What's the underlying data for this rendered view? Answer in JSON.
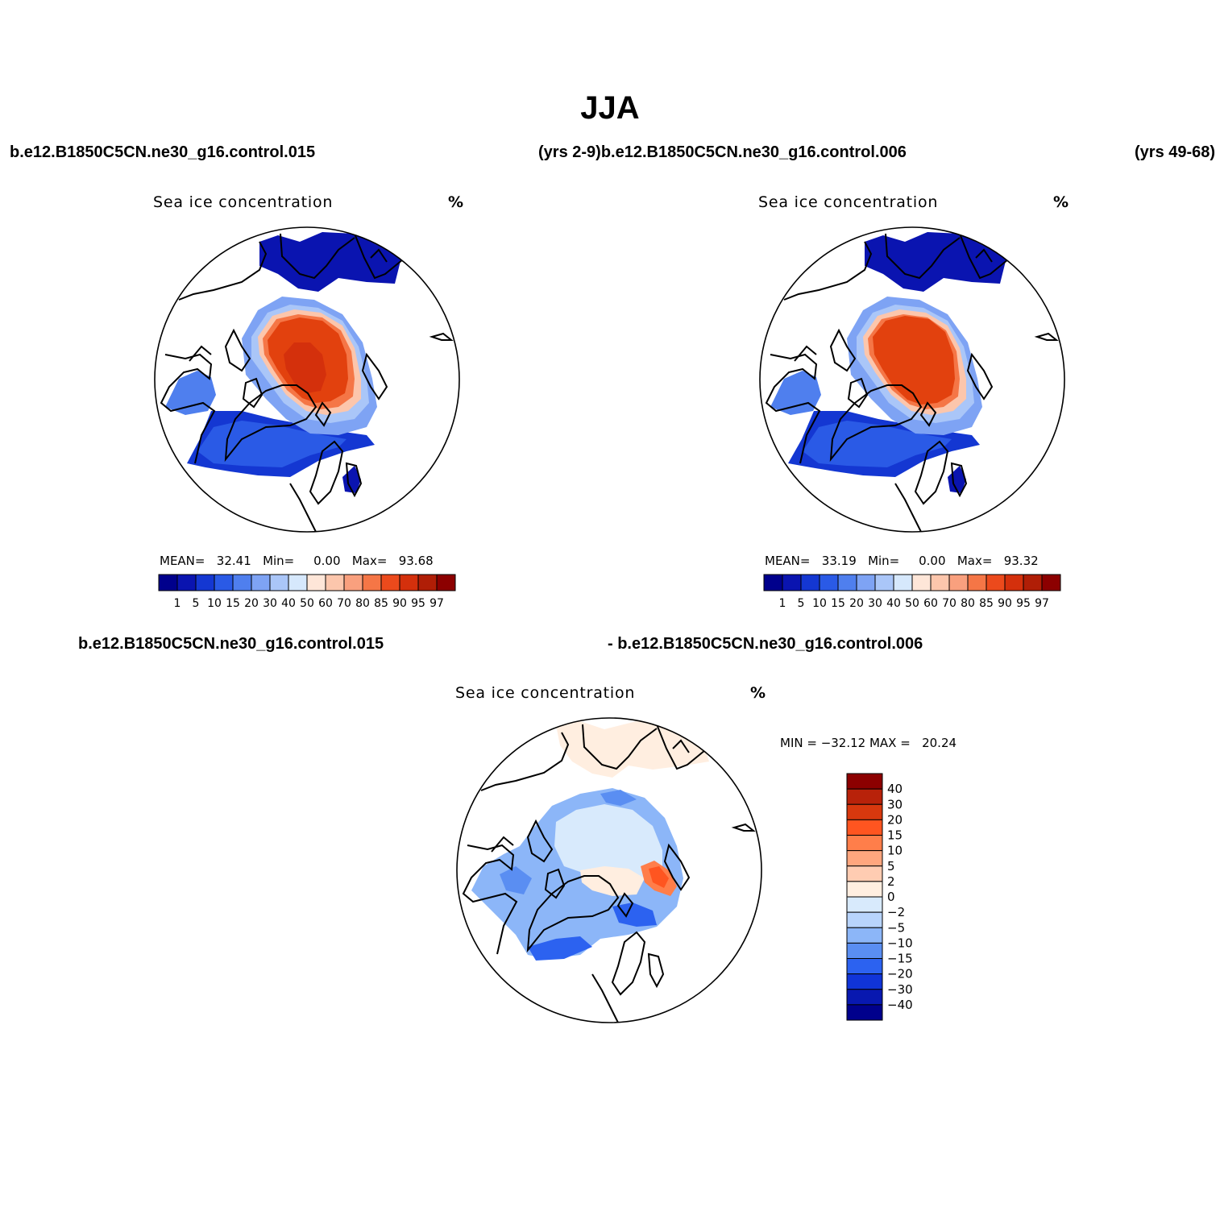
{
  "figure": {
    "title": "JJA",
    "header_left": "b.e12.B1850C5CN.ne30_g16.control.015",
    "header_middle": "(yrs 2-9)b.e12.B1850C5CN.ne30_g16.control.006",
    "header_right": "(yrs 49-68)",
    "diff_label_left": "b.e12.B1850C5CN.ne30_g16.control.015",
    "diff_label_right": "- b.e12.B1850C5CN.ne30_g16.control.006"
  },
  "panels": [
    {
      "title": "Sea ice concentration",
      "unit": "%",
      "stats": {
        "mean_label": "MEAN=",
        "mean": "32.41",
        "min_label": "Min=",
        "min": "0.00",
        "max_label": "Max=",
        "max": "93.68"
      },
      "colorbar": {
        "colors": [
          "#00008c",
          "#0a14b0",
          "#1437d2",
          "#2a5ae6",
          "#4f7fee",
          "#7ea3f4",
          "#aac6f8",
          "#d6e8fc",
          "#fee6d8",
          "#fcc6ac",
          "#f9a07e",
          "#f57646",
          "#ec4a1c",
          "#d4300c",
          "#b01e06",
          "#8c0000"
        ],
        "ticks": [
          "1",
          "5",
          "10",
          "15",
          "20",
          "30",
          "40",
          "50",
          "60",
          "70",
          "80",
          "85",
          "90",
          "95",
          "97"
        ]
      }
    },
    {
      "title": "Sea ice concentration",
      "unit": "%",
      "stats": {
        "mean_label": "MEAN=",
        "mean": "33.19",
        "min_label": "Min=",
        "min": "0.00",
        "max_label": "Max=",
        "max": "93.32"
      },
      "colorbar": {
        "colors": [
          "#00008c",
          "#0a14b0",
          "#1437d2",
          "#2a5ae6",
          "#4f7fee",
          "#7ea3f4",
          "#aac6f8",
          "#d6e8fc",
          "#fee6d8",
          "#fcc6ac",
          "#f9a07e",
          "#f57646",
          "#ec4a1c",
          "#d4300c",
          "#b01e06",
          "#8c0000"
        ],
        "ticks": [
          "1",
          "5",
          "10",
          "15",
          "20",
          "30",
          "40",
          "50",
          "60",
          "70",
          "80",
          "85",
          "90",
          "95",
          "97"
        ]
      }
    },
    {
      "title": "Sea ice concentration",
      "unit": "%",
      "stats": {
        "text": "MIN = −32.12 MAX =   20.24"
      },
      "colorbar": {
        "colors": [
          "#8c0000",
          "#b8220a",
          "#d8380e",
          "#ff5520",
          "#ff7e4a",
          "#ffa67e",
          "#ffccb2",
          "#ffeee0",
          "#d8eafc",
          "#b8d4fc",
          "#8cb6f8",
          "#5a8ef2",
          "#2c62f0",
          "#1034d8",
          "#0818b0",
          "#00008c"
        ],
        "ticks": [
          "40",
          "30",
          "20",
          "15",
          "10",
          "5",
          "2",
          "0",
          "−2",
          "−5",
          "−10",
          "−15",
          "−20",
          "−30",
          "−40"
        ]
      }
    }
  ]
}
